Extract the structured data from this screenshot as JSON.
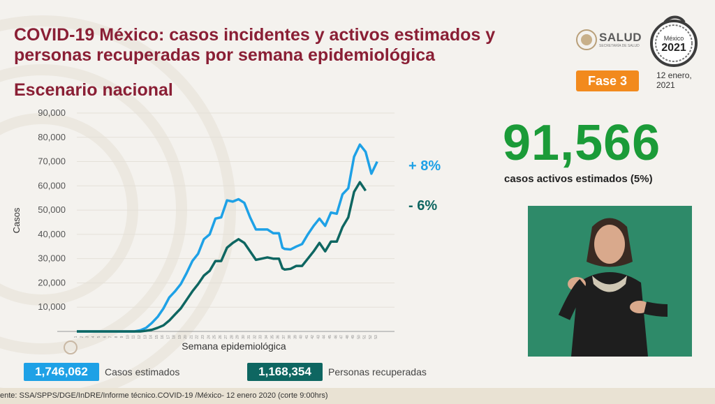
{
  "header": {
    "title_line1": "COVID-19 México: casos incidentes y activos estimados y",
    "title_line2": "personas recuperadas por semana epidemiológica",
    "subtitle": "Escenario nacional"
  },
  "logos": {
    "salud": "SALUD",
    "salud_sub": "SECRETARÍA DE SALUD",
    "emblem_year": "2021",
    "emblem_country": "México"
  },
  "fase_label": "Fase 3",
  "date": {
    "line1": "12 enero,",
    "line2": "2021"
  },
  "active": {
    "number": "91,566",
    "label": "casos activos estimados (5%)"
  },
  "legend": {
    "estimated_value": "1,746,062",
    "estimated_label": "Casos estimados",
    "recovered_value": "1,168,354",
    "recovered_label": "Personas recuperadas"
  },
  "footer": "ente: SSA/SPPS/DGE/InDRE/Informe técnico.COVID-19 /México- 12 enero 2020 (corte 9:00hrs)",
  "colors": {
    "estimated": "#1ea1e6",
    "recovered": "#0e6661",
    "title": "#8a1f35",
    "big_number": "#1b9b38",
    "fase": "#f28a1d"
  },
  "chart_data": {
    "type": "line",
    "title": "",
    "xlabel": "Semana epidemiológica",
    "ylabel": "Casos",
    "ylim": [
      0,
      90000
    ],
    "yticks": [
      "10,000",
      "20,000",
      "30,000",
      "40,000",
      "50,000",
      "60,000",
      "70,000",
      "80,000",
      "90,000"
    ],
    "x": [
      1,
      2,
      3,
      4,
      5,
      6,
      7,
      8,
      9,
      10,
      11,
      12,
      13,
      14,
      15,
      16,
      17,
      18,
      19,
      20,
      21,
      22,
      23,
      24,
      25,
      26,
      27,
      28,
      29,
      30,
      31,
      32,
      33,
      34,
      35,
      36,
      36.6,
      37,
      38,
      39,
      40,
      41,
      42,
      43,
      44,
      45,
      46,
      47,
      48,
      49,
      50,
      51,
      52,
      53,
      54,
      55,
      56
    ],
    "series": [
      {
        "name": "Casos estimados",
        "color": "#1ea1e6",
        "values": [
          0,
          0,
          0,
          0,
          0,
          0,
          0,
          0,
          0,
          0,
          0,
          500,
          1500,
          3500,
          6000,
          9500,
          14000,
          16500,
          19500,
          24000,
          29000,
          32000,
          38000,
          40000,
          46500,
          47000,
          54000,
          53500,
          54500,
          53000,
          47000,
          42000,
          42000,
          42000,
          40500,
          40500,
          34500,
          34000,
          33800,
          35000,
          36000,
          40000,
          43500,
          46500,
          43500,
          49000,
          48500,
          56500,
          59000,
          72000,
          77000,
          74000,
          65000,
          70000,
          null,
          null,
          null
        ],
        "annotation": "+ 8%"
      },
      {
        "name": "Personas recuperadas",
        "color": "#0e6661",
        "values": [
          0,
          0,
          0,
          0,
          0,
          0,
          0,
          0,
          0,
          0,
          0,
          0,
          300,
          700,
          1500,
          2500,
          4500,
          7000,
          9500,
          13000,
          16500,
          19500,
          23000,
          25000,
          29000,
          29000,
          34500,
          36500,
          38000,
          36500,
          33000,
          29500,
          30000,
          30500,
          30000,
          30000,
          26000,
          25500,
          25800,
          27000,
          27000,
          30000,
          33000,
          36500,
          33000,
          37000,
          37000,
          43000,
          47000,
          57500,
          61500,
          58000,
          null,
          null,
          null,
          null,
          null
        ],
        "annotation": "- 6%"
      }
    ],
    "annotations": [
      "+ 8%",
      "- 6%"
    ]
  }
}
